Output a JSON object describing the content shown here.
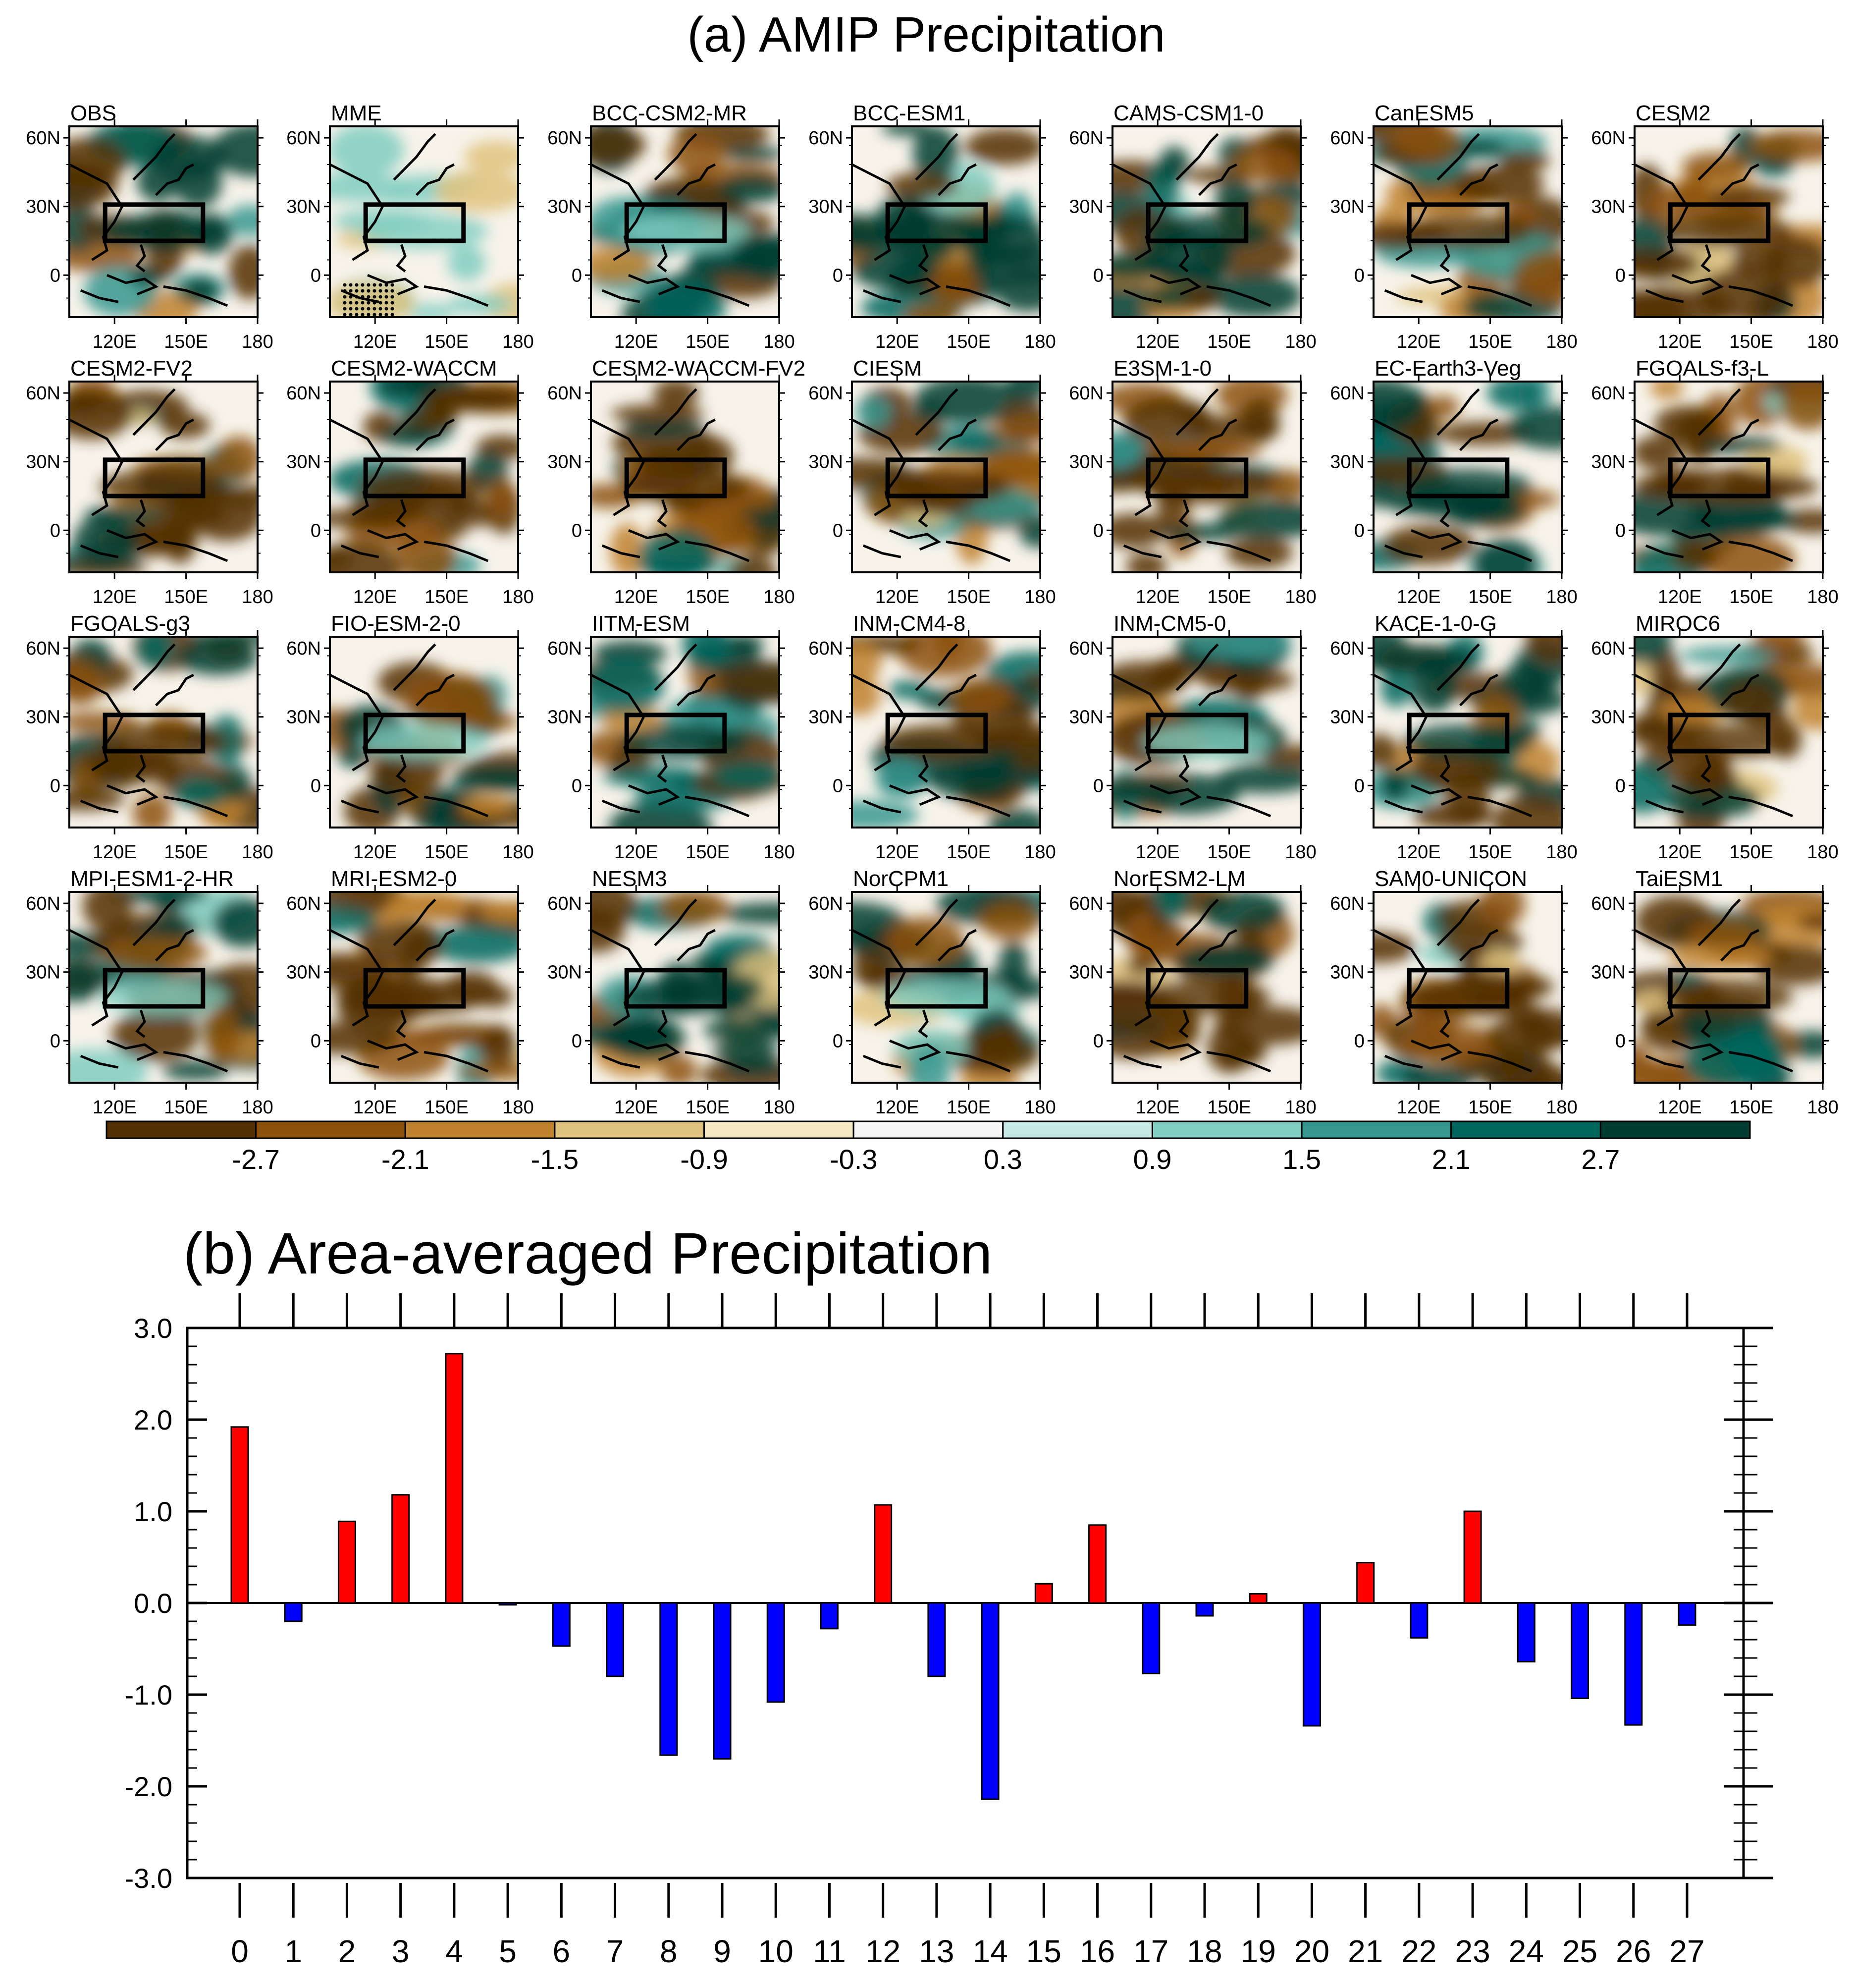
{
  "figure": {
    "panel_a_title": "(a) AMIP Precipitation",
    "panel_b_title": "(b) Area-averaged Precipitation"
  },
  "map_axes": {
    "lat_labels": [
      "60N",
      "30N",
      "0"
    ],
    "lon_labels": [
      "120E",
      "150E",
      "180"
    ]
  },
  "maps": [
    {
      "name": "OBS",
      "style": "obs"
    },
    {
      "name": "MME",
      "style": "mme"
    },
    {
      "name": "BCC-CSM2-MR",
      "style": "mixed"
    },
    {
      "name": "BCC-ESM1",
      "style": "wet"
    },
    {
      "name": "CAMS-CSM1-0",
      "style": "wet"
    },
    {
      "name": "CanESM5",
      "style": "dry"
    },
    {
      "name": "CESM2",
      "style": "dry"
    },
    {
      "name": "CESM2-FV2",
      "style": "dry"
    },
    {
      "name": "CESM2-WACCM",
      "style": "dry"
    },
    {
      "name": "CESM2-WACCM-FV2",
      "style": "dry"
    },
    {
      "name": "CIESM",
      "style": "dry"
    },
    {
      "name": "E3SM-1-0",
      "style": "dry"
    },
    {
      "name": "EC-Earth3-Veg",
      "style": "wet"
    },
    {
      "name": "FGOALS-f3-L",
      "style": "dry"
    },
    {
      "name": "FGOALS-g3",
      "style": "dry"
    },
    {
      "name": "FIO-ESM-2-0",
      "style": "mixed"
    },
    {
      "name": "IITM-ESM",
      "style": "wet"
    },
    {
      "name": "INM-CM4-8",
      "style": "dry"
    },
    {
      "name": "INM-CM5-0",
      "style": "mixed"
    },
    {
      "name": "KACE-1-0-G",
      "style": "wet"
    },
    {
      "name": "MIROC6",
      "style": "dry"
    },
    {
      "name": "MPI-ESM1-2-HR",
      "style": "mixed"
    },
    {
      "name": "MRI-ESM2-0",
      "style": "dry"
    },
    {
      "name": "NESM3",
      "style": "wet"
    },
    {
      "name": "NorCPM1",
      "style": "mixed"
    },
    {
      "name": "NorESM2-LM",
      "style": "dry"
    },
    {
      "name": "SAM0-UNICON",
      "style": "dry"
    },
    {
      "name": "TaiESM1",
      "style": "dry"
    }
  ],
  "colorbar": {
    "labels": [
      "-2.7",
      "-2.1",
      "-1.5",
      "-0.9",
      "-0.3",
      "0.3",
      "0.9",
      "1.5",
      "2.1",
      "2.7"
    ],
    "colors": [
      "#543005",
      "#8c510a",
      "#bf812d",
      "#dfc27d",
      "#f6e8c3",
      "#f5f5f5",
      "#c7eae5",
      "#80cdc1",
      "#35978f",
      "#01665e",
      "#003c30"
    ]
  },
  "chart_data": {
    "type": "bar",
    "title": "(b) Area-averaged Precipitation",
    "categories": [
      "0",
      "1",
      "2",
      "3",
      "4",
      "5",
      "6",
      "7",
      "8",
      "9",
      "10",
      "11",
      "12",
      "13",
      "14",
      "15",
      "16",
      "17",
      "18",
      "19",
      "20",
      "21",
      "22",
      "23",
      "24",
      "25",
      "26",
      "27"
    ],
    "values": [
      1.92,
      -0.2,
      0.89,
      1.18,
      2.72,
      -0.02,
      -0.47,
      -0.8,
      -1.66,
      -1.7,
      -1.08,
      -0.28,
      1.07,
      -0.8,
      -2.14,
      0.21,
      0.85,
      -0.77,
      -0.14,
      0.1,
      -1.34,
      0.44,
      -0.38,
      1.0,
      -0.64,
      -1.04,
      -1.33,
      -0.24
    ],
    "positive_color": "#ff0000",
    "negative_color": "#0000ff",
    "ylim": [
      -3.0,
      3.0
    ],
    "yticks": [
      "3.0",
      "2.0",
      "1.0",
      "0.0",
      "-1.0",
      "-2.0",
      "-3.0"
    ],
    "xlabel": "",
    "ylabel": ""
  }
}
